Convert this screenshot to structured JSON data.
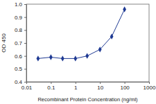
{
  "chart_data": {
    "type": "line",
    "x_label": "Recombinant Protein Concentration (ng/ml)",
    "y_label": "OD 450",
    "x": [
      0.03,
      0.1,
      0.3,
      1,
      3,
      10,
      30,
      100
    ],
    "values": [
      0.58,
      0.59,
      0.58,
      0.58,
      0.6,
      0.65,
      0.75,
      0.96
    ],
    "color": "#1f3a93",
    "marker": "diamond",
    "log": "x",
    "grid": false,
    "xlim": [
      0.01,
      1000
    ],
    "xticks": [
      0.01,
      0.1,
      1,
      10,
      100,
      1000
    ],
    "ylim": [
      0.4,
      1
    ],
    "yticks": [
      0.4,
      0.5,
      0.6,
      0.7,
      0.8,
      0.9,
      {
        "value": 1,
        "label": "1.0"
      }
    ]
  }
}
